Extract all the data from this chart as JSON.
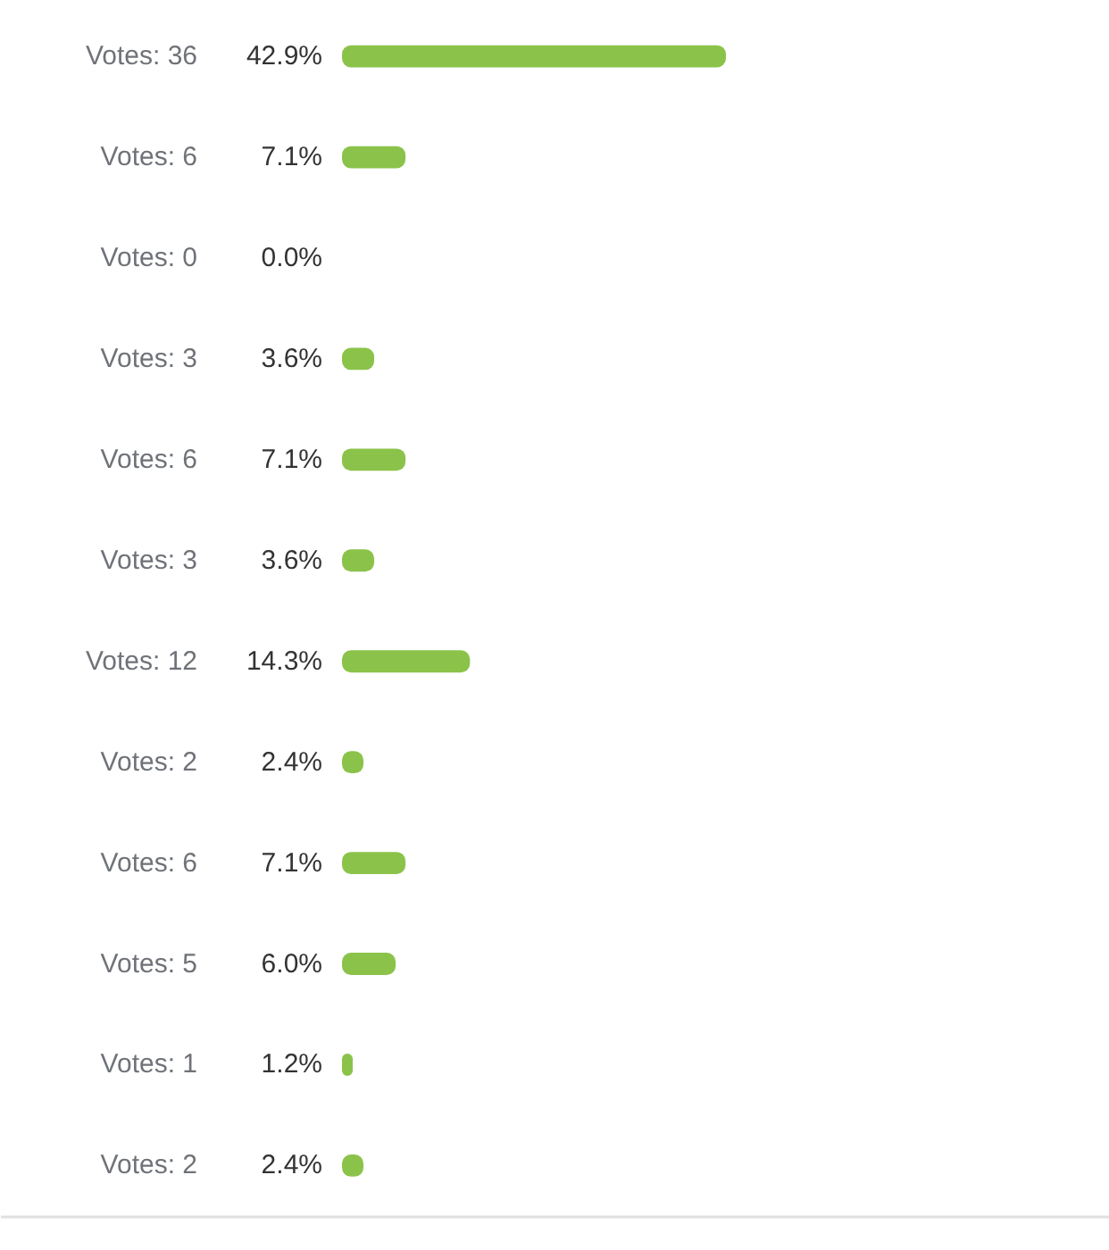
{
  "chart_data": {
    "type": "bar",
    "orientation": "horizontal",
    "categories": [
      "Votes: 36",
      "Votes: 6",
      "Votes: 0",
      "Votes: 3",
      "Votes: 6",
      "Votes: 3",
      "Votes: 12",
      "Votes: 2",
      "Votes: 6",
      "Votes: 5",
      "Votes: 1",
      "Votes: 2"
    ],
    "values": [
      42.9,
      7.1,
      0.0,
      3.6,
      7.1,
      3.6,
      14.3,
      2.4,
      7.1,
      6.0,
      1.2,
      2.4
    ],
    "value_labels": [
      "42.9%",
      "7.1%",
      "0.0%",
      "3.6%",
      "7.1%",
      "3.6%",
      "14.3%",
      "2.4%",
      "7.1%",
      "6.0%",
      "1.2%",
      "2.4%"
    ],
    "color": "#8bc34a"
  }
}
